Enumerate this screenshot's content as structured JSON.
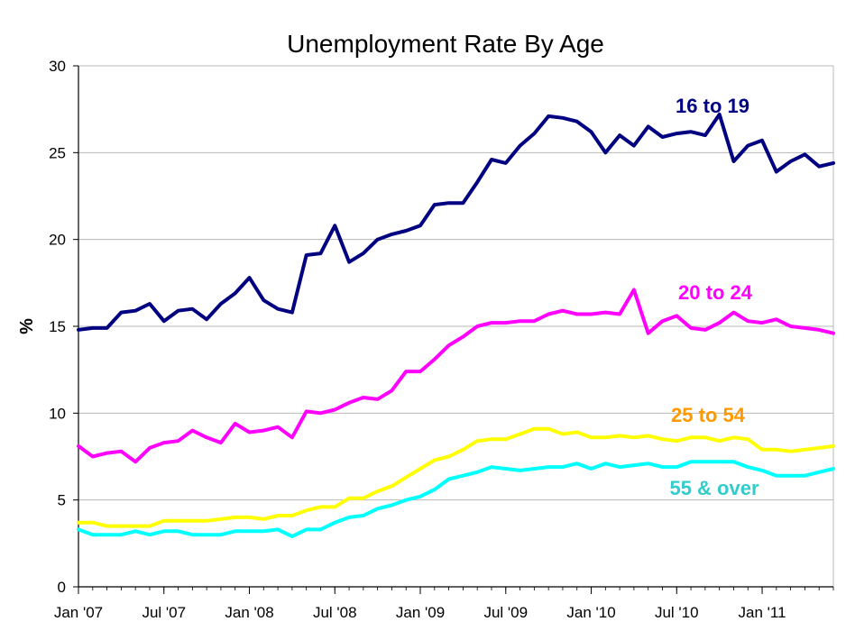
{
  "chart_data": {
    "type": "line",
    "title": "Unemployment Rate By Age",
    "ylabel": "%",
    "xlabel": "",
    "ylim": [
      0,
      30
    ],
    "yticks": [
      0,
      5,
      10,
      15,
      20,
      25,
      30
    ],
    "grid": true,
    "x_tick_labels": [
      "Jan '07",
      "Jul '07",
      "Jan '08",
      "Jul '08",
      "Jan '09",
      "Jul '09",
      "Jan '10",
      "Jul '10",
      "Jan '11"
    ],
    "x_tick_month_index": [
      0,
      6,
      12,
      18,
      24,
      30,
      36,
      42,
      48
    ],
    "x_start": "Jan '07",
    "series": [
      {
        "name": "16 to 19",
        "color": "#000080",
        "values": [
          14.8,
          14.9,
          14.9,
          15.8,
          15.9,
          16.3,
          15.3,
          15.9,
          16.0,
          15.4,
          16.3,
          16.9,
          17.8,
          16.5,
          16.0,
          15.8,
          19.1,
          19.2,
          20.8,
          18.7,
          19.2,
          20.0,
          20.3,
          20.5,
          20.8,
          22.0,
          22.1,
          22.1,
          23.3,
          24.6,
          24.4,
          25.4,
          26.1,
          27.1,
          27.0,
          26.8,
          26.2,
          25.0,
          26.0,
          25.4,
          26.5,
          25.9,
          26.1,
          26.2,
          26.0,
          27.2,
          24.5,
          25.4,
          25.7,
          23.9,
          24.5,
          24.9,
          24.2,
          24.4
        ]
      },
      {
        "name": "20 to 24",
        "color": "#ff00ff",
        "values": [
          8.1,
          7.5,
          7.7,
          7.8,
          7.2,
          8.0,
          8.3,
          8.4,
          9.0,
          8.6,
          8.3,
          9.4,
          8.9,
          9.0,
          9.2,
          8.6,
          10.1,
          10.0,
          10.2,
          10.6,
          10.9,
          10.8,
          11.3,
          12.4,
          12.4,
          13.1,
          13.9,
          14.4,
          15.0,
          15.2,
          15.2,
          15.3,
          15.3,
          15.7,
          15.9,
          15.7,
          15.7,
          15.8,
          15.7,
          17.1,
          14.6,
          15.3,
          15.6,
          14.9,
          14.8,
          15.2,
          15.8,
          15.3,
          15.2,
          15.4,
          15.0,
          14.9,
          14.8,
          14.6
        ]
      },
      {
        "name": "25 to 54",
        "color": "#ffff00",
        "label_color": "#ff9900",
        "values": [
          3.7,
          3.7,
          3.5,
          3.5,
          3.5,
          3.5,
          3.8,
          3.8,
          3.8,
          3.8,
          3.9,
          4.0,
          4.0,
          3.9,
          4.1,
          4.1,
          4.4,
          4.6,
          4.6,
          5.1,
          5.1,
          5.5,
          5.8,
          6.3,
          6.8,
          7.3,
          7.5,
          7.9,
          8.4,
          8.5,
          8.5,
          8.8,
          9.1,
          9.1,
          8.8,
          8.9,
          8.6,
          8.6,
          8.7,
          8.6,
          8.7,
          8.5,
          8.4,
          8.6,
          8.6,
          8.4,
          8.6,
          8.5,
          7.9,
          7.9,
          7.8,
          7.9,
          8.0,
          8.1
        ]
      },
      {
        "name": "55 & over",
        "color": "#00ffff",
        "label_color": "#33cccc",
        "values": [
          3.3,
          3.0,
          3.0,
          3.0,
          3.2,
          3.0,
          3.2,
          3.2,
          3.0,
          3.0,
          3.0,
          3.2,
          3.2,
          3.2,
          3.3,
          2.9,
          3.3,
          3.3,
          3.7,
          4.0,
          4.1,
          4.5,
          4.7,
          5.0,
          5.2,
          5.6,
          6.2,
          6.4,
          6.6,
          6.9,
          6.8,
          6.7,
          6.8,
          6.9,
          6.9,
          7.1,
          6.8,
          7.1,
          6.9,
          7.0,
          7.1,
          6.9,
          6.9,
          7.2,
          7.2,
          7.2,
          7.2,
          6.9,
          6.7,
          6.4,
          6.4,
          6.4,
          6.6,
          6.8
        ]
      }
    ]
  }
}
